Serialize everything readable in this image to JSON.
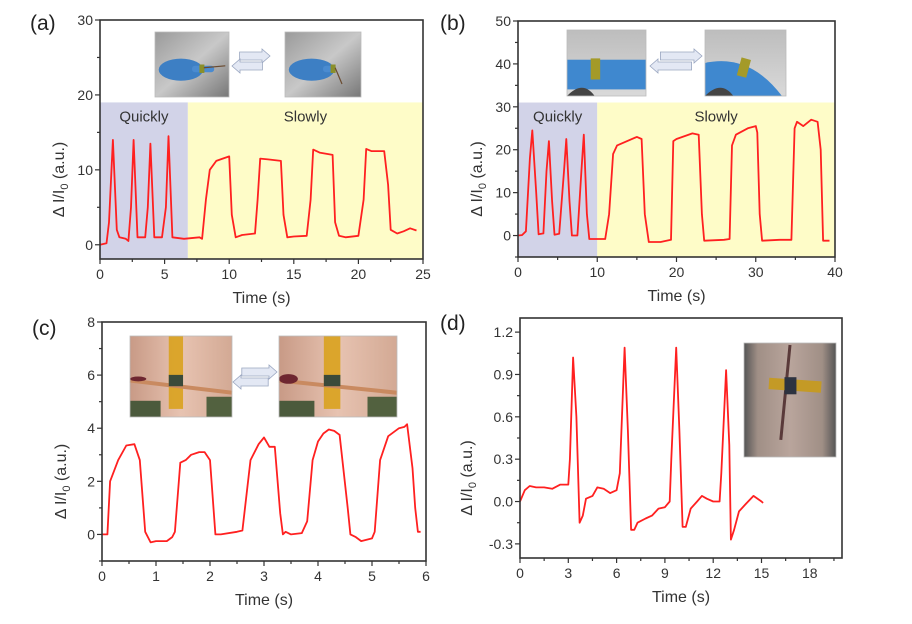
{
  "colors": {
    "line": "#ff2020",
    "quick_region": "#d2d3e8",
    "slow_region": "#fefcc8",
    "axis": "#333333"
  },
  "chart_data": [
    {
      "panel_label": "(a)",
      "type": "line",
      "xlabel": "Time (s)",
      "ylabel_main": "Δ I/I",
      "ylabel_sub": "0",
      "ylabel_unit": " (a.u.)",
      "xlim": [
        0,
        25
      ],
      "ylim": [
        -1.9,
        30
      ],
      "xticks": [
        0,
        5,
        10,
        15,
        20,
        25
      ],
      "yticks": [
        0,
        10,
        20,
        30
      ],
      "regions": [
        {
          "label": "Quickly",
          "x": [
            0,
            6.8
          ],
          "y_top": 19,
          "color": "quick_region"
        },
        {
          "label": "Slowly",
          "x": [
            6.8,
            25
          ],
          "y_top": 19,
          "color": "slow_region"
        }
      ],
      "insets": [
        "hand-finger-straight-photo",
        "hand-finger-bent-photo"
      ],
      "x": [
        0,
        0.5,
        0.7,
        1.0,
        1.3,
        1.5,
        2.0,
        2.2,
        2.4,
        2.6,
        2.9,
        3.5,
        3.7,
        3.9,
        4.2,
        4.8,
        5.1,
        5.3,
        5.6,
        6.5,
        7.7,
        7.9,
        8.2,
        8.5,
        9,
        9.5,
        10,
        10.2,
        10.5,
        11,
        12,
        12.2,
        12.4,
        13,
        14,
        14.2,
        14.5,
        15,
        16,
        16.3,
        16.5,
        17,
        18,
        18.2,
        18.5,
        19,
        20,
        20.4,
        20.6,
        21,
        22,
        22.3,
        22.5,
        23,
        23.5,
        24,
        24.5
      ],
      "y": [
        0,
        0.2,
        3,
        14,
        2,
        1,
        0.8,
        0.5,
        5,
        14,
        1,
        1,
        5,
        13.5,
        1,
        1,
        5,
        14.5,
        1,
        0.8,
        1,
        0.8,
        6,
        10,
        11.2,
        11.5,
        11.8,
        4,
        1,
        1.3,
        1.5,
        6,
        11.5,
        11.4,
        11.2,
        4,
        1,
        1.1,
        1.2,
        6,
        12.7,
        12.3,
        12,
        3,
        1.2,
        1,
        1.2,
        6,
        12.8,
        12.5,
        12.5,
        8,
        2,
        1.5,
        1.8,
        2.2,
        1.9
      ]
    },
    {
      "panel_label": "(b)",
      "type": "line",
      "xlabel": "Time (s)",
      "ylabel_main": "Δ I/I",
      "ylabel_sub": "0",
      "ylabel_unit": " (a.u.)",
      "xlim": [
        0,
        40
      ],
      "ylim": [
        -5,
        50
      ],
      "xticks": [
        0,
        10,
        20,
        30,
        40
      ],
      "yticks": [
        0,
        10,
        20,
        30,
        40,
        50
      ],
      "regions": [
        {
          "label": "Quickly",
          "x": [
            0,
            10
          ],
          "y_top": 31,
          "color": "quick_region"
        },
        {
          "label": "Slowly",
          "x": [
            10,
            40
          ],
          "y_top": 31,
          "color": "slow_region"
        }
      ],
      "insets": [
        "gloved-wrist-straight-photo",
        "gloved-wrist-bent-photo"
      ],
      "x": [
        0,
        0.5,
        1,
        1.5,
        1.8,
        2.3,
        2.6,
        3.2,
        3.6,
        3.9,
        4.3,
        4.6,
        5.2,
        5.8,
        6.1,
        6.5,
        6.8,
        7.5,
        8.0,
        8.3,
        8.7,
        9,
        10,
        11,
        11.5,
        12,
        12.5,
        15,
        15.6,
        16,
        16.5,
        18,
        19.3,
        19.6,
        20,
        22,
        22.8,
        23.2,
        23.5,
        26,
        26.7,
        27,
        27.5,
        29,
        30,
        30.2,
        30.5,
        30.8,
        33,
        34.5,
        34.9,
        35.2,
        36,
        37,
        37.8,
        38.2,
        38.5,
        39.3
      ],
      "y": [
        0,
        0.1,
        1,
        18,
        24.5,
        10,
        0.3,
        0.5,
        15,
        22,
        8,
        0.2,
        0.4,
        15,
        22.5,
        8,
        0,
        0,
        15,
        23.5,
        5,
        -0.8,
        -0.8,
        -0.8,
        5,
        19,
        21,
        23,
        22.5,
        5,
        -1.5,
        -1.5,
        -1,
        22,
        22.5,
        23.8,
        23.5,
        5,
        -1.2,
        -1,
        -0.8,
        21,
        23.5,
        25,
        25.5,
        24,
        5,
        -1.2,
        -1,
        -1,
        25,
        26.5,
        25.5,
        27,
        26.5,
        20,
        -1.2,
        -1.2
      ]
    },
    {
      "panel_label": "(c)",
      "type": "line",
      "xlabel": "Time (s)",
      "ylabel_main": "Δ I/I",
      "ylabel_sub": "0",
      "ylabel_unit": " (a.u.)",
      "xlim": [
        0,
        6
      ],
      "ylim": [
        -1,
        8
      ],
      "xticks": [
        0,
        1,
        2,
        3,
        4,
        5,
        6
      ],
      "yticks": [
        0,
        2,
        4,
        6,
        8
      ],
      "regions": [],
      "insets": [
        "face-mouth-closed-photo",
        "face-mouth-open-photo"
      ],
      "x": [
        0,
        0.1,
        0.15,
        0.3,
        0.45,
        0.6,
        0.7,
        0.8,
        0.9,
        1.0,
        1.2,
        1.3,
        1.35,
        1.45,
        1.55,
        1.65,
        1.8,
        1.9,
        2.0,
        2.1,
        2.2,
        2.5,
        2.6,
        2.75,
        2.9,
        3.0,
        3.1,
        3.2,
        3.3,
        3.35,
        3.4,
        3.5,
        3.7,
        3.8,
        3.9,
        4.0,
        4.1,
        4.2,
        4.3,
        4.4,
        4.55,
        4.6,
        4.7,
        4.8,
        5.0,
        5.05,
        5.15,
        5.3,
        5.5,
        5.6,
        5.65,
        5.75,
        5.8,
        5.85,
        5.9
      ],
      "y": [
        0,
        0,
        2,
        2.8,
        3.35,
        3.4,
        2.8,
        0.1,
        -0.3,
        -0.25,
        -0.25,
        -0.1,
        0.1,
        2.7,
        2.8,
        3,
        3.1,
        3.1,
        2.8,
        0,
        0,
        0.1,
        0.15,
        2.8,
        3.4,
        3.65,
        3.3,
        3.3,
        0.8,
        0,
        0.1,
        0,
        0.05,
        0.5,
        2.8,
        3.5,
        3.8,
        3.95,
        3.9,
        3.75,
        1.0,
        0,
        -0.1,
        -0.25,
        -0.15,
        0.1,
        2.8,
        3.7,
        4,
        4.05,
        4.15,
        2.5,
        1.0,
        0.1,
        0.1
      ]
    },
    {
      "panel_label": "(d)",
      "type": "line",
      "xlabel": "Time (s)",
      "ylabel_main": "Δ I/I",
      "ylabel_sub": "0",
      "ylabel_unit": " (a.u.)",
      "xlim": [
        0,
        20
      ],
      "ylim": [
        -0.4,
        1.3
      ],
      "xticks": [
        0,
        3,
        6,
        9,
        12,
        15,
        18
      ],
      "yticks": [
        -0.3,
        0.0,
        0.3,
        0.6,
        0.9,
        1.2
      ],
      "ytick_labels": [
        "-0.3",
        "0.0",
        "0.3",
        "0.6",
        "0.9",
        "1.2"
      ],
      "regions": [],
      "insets": [
        "neck-sensor-photo"
      ],
      "x": [
        0,
        0.3,
        0.6,
        1,
        1.5,
        2,
        2.5,
        3,
        3.1,
        3.3,
        3.5,
        3.7,
        3.9,
        4.1,
        4.5,
        4.8,
        5.2,
        5.6,
        6.0,
        6.2,
        6.5,
        6.7,
        6.9,
        7.1,
        7.3,
        7.8,
        8.2,
        8.6,
        9.0,
        9.3,
        9.4,
        9.7,
        9.9,
        10.1,
        10.3,
        10.6,
        11,
        11.3,
        11.6,
        12.0,
        12.4,
        12.5,
        12.8,
        13.0,
        13.1,
        13.3,
        13.6,
        14,
        14.5,
        15,
        15.1
      ],
      "y": [
        0,
        0.08,
        0.11,
        0.1,
        0.1,
        0.09,
        0.12,
        0.12,
        0.3,
        1.02,
        0.6,
        -0.15,
        -0.1,
        0.02,
        0.04,
        0.1,
        0.09,
        0.06,
        0.08,
        0.2,
        1.09,
        0.5,
        -0.2,
        -0.2,
        -0.15,
        -0.12,
        -0.1,
        -0.05,
        -0.04,
        0,
        0.3,
        1.09,
        0.5,
        -0.18,
        -0.18,
        -0.05,
        0,
        0.04,
        0.02,
        0,
        0,
        0.2,
        0.93,
        0.4,
        -0.27,
        -0.2,
        -0.07,
        -0.02,
        0.04,
        0,
        -0.01
      ]
    }
  ]
}
